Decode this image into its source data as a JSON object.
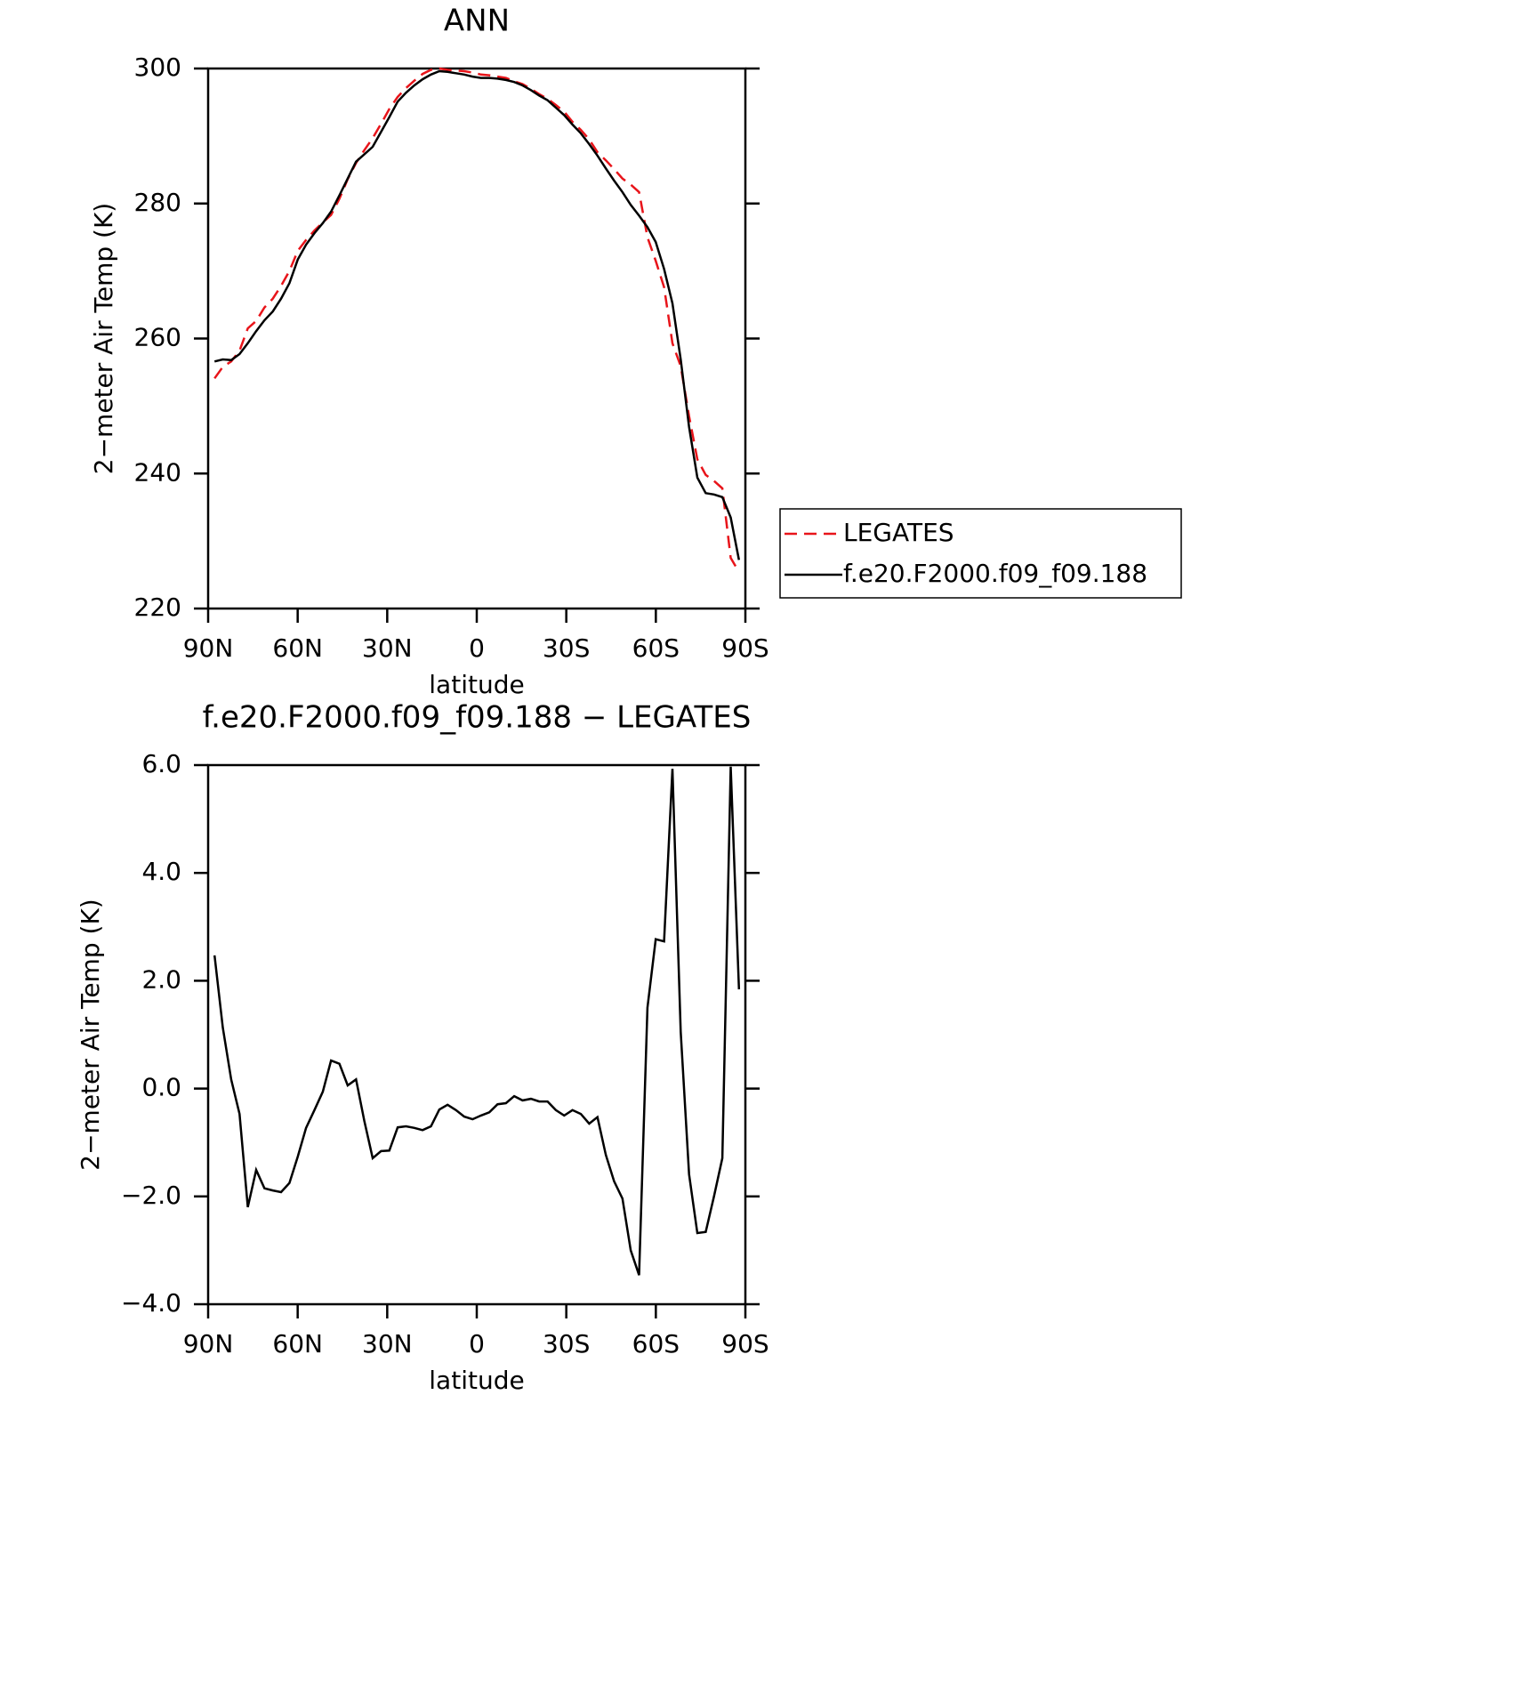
{
  "chart_data": [
    {
      "type": "line",
      "title": "ANN",
      "xlabel": "latitude",
      "ylabel": "2−meter Air Temp (K)",
      "x": [
        87.86,
        85.07,
        82.28,
        79.49,
        76.7,
        73.92,
        71.13,
        68.34,
        65.55,
        62.76,
        59.97,
        57.18,
        54.39,
        51.6,
        48.81,
        46.02,
        43.24,
        40.45,
        37.66,
        34.87,
        32.08,
        29.29,
        26.5,
        23.71,
        20.92,
        18.14,
        15.35,
        12.56,
        9.77,
        6.98,
        4.19,
        1.4,
        -1.4,
        -4.19,
        -6.98,
        -9.77,
        -12.56,
        -15.35,
        -18.14,
        -20.92,
        -23.71,
        -26.5,
        -29.29,
        -32.08,
        -34.87,
        -37.66,
        -40.45,
        -43.24,
        -46.02,
        -48.81,
        -51.6,
        -54.39,
        -57.18,
        -59.97,
        -62.76,
        -65.55,
        -68.34,
        -71.13,
        -73.92,
        -76.7,
        -79.49,
        -82.28,
        -85.07,
        -87.86
      ],
      "series": [
        {
          "name": "LEGATES",
          "color": "#e8141a",
          "line_style": "dashed",
          "values": [
            254.1,
            255.8,
            256.6,
            258.2,
            261.5,
            262.6,
            264.6,
            265.9,
            267.8,
            270.0,
            273.0,
            274.6,
            276.0,
            277.2,
            278.3,
            280.7,
            283.6,
            286.0,
            287.9,
            289.7,
            291.8,
            294.0,
            295.8,
            297.1,
            298.2,
            299.2,
            299.8,
            300.0,
            299.8,
            299.7,
            299.6,
            299.4,
            299.1,
            299.0,
            298.8,
            298.6,
            298.1,
            297.7,
            297.0,
            296.2,
            295.5,
            294.6,
            293.6,
            292.1,
            290.9,
            289.5,
            287.6,
            286.4,
            285.1,
            283.7,
            282.8,
            281.7,
            275.0,
            271.5,
            267.6,
            259.3,
            255.9,
            248.5,
            242.1,
            239.8,
            238.9,
            237.8,
            227.5,
            225.4
          ]
        },
        {
          "name": "f.e20.F2000.f09_f09.188",
          "color": "#000000",
          "line_style": "solid",
          "values": [
            256.6,
            256.9,
            256.8,
            257.7,
            259.3,
            261.1,
            262.7,
            264.0,
            265.9,
            268.2,
            271.7,
            273.9,
            275.6,
            277.1,
            278.8,
            281.2,
            283.7,
            286.2,
            287.3,
            288.4,
            290.6,
            292.8,
            295.1,
            296.4,
            297.5,
            298.4,
            299.1,
            299.6,
            299.5,
            299.3,
            299.1,
            298.8,
            298.6,
            298.6,
            298.5,
            298.3,
            298.0,
            297.5,
            296.8,
            296.0,
            295.3,
            294.2,
            293.1,
            291.7,
            290.4,
            288.8,
            287.1,
            285.2,
            283.4,
            281.7,
            279.8,
            278.2,
            276.5,
            274.3,
            270.3,
            265.2,
            256.9,
            246.9,
            239.4,
            237.1,
            236.9,
            236.5,
            233.5,
            227.2
          ]
        }
      ],
      "xlim": [
        90,
        -90
      ],
      "xticks": [
        {
          "value": 90,
          "label": "90N"
        },
        {
          "value": 60,
          "label": "60N"
        },
        {
          "value": 30,
          "label": "30N"
        },
        0,
        {
          "value": -30,
          "label": "30S"
        },
        {
          "value": -60,
          "label": "60S"
        },
        {
          "value": -90,
          "label": "90S"
        }
      ],
      "ylim": [
        220,
        300
      ],
      "yticks": [
        220,
        240,
        260,
        280,
        300
      ],
      "legend": "right"
    },
    {
      "type": "line",
      "title": "f.e20.F2000.f09_f09.188 − LEGATES",
      "xlabel": "latitude",
      "ylabel": "2−meter Air Temp (K)",
      "x": [
        87.86,
        85.07,
        82.28,
        79.49,
        76.7,
        73.92,
        71.13,
        68.34,
        65.55,
        62.76,
        59.97,
        57.18,
        54.39,
        51.6,
        48.81,
        46.02,
        43.24,
        40.45,
        37.66,
        34.87,
        32.08,
        29.29,
        26.5,
        23.71,
        20.92,
        18.14,
        15.35,
        12.56,
        9.77,
        6.98,
        4.19,
        1.4,
        -1.4,
        -4.19,
        -6.98,
        -9.77,
        -12.56,
        -15.35,
        -18.14,
        -20.92,
        -23.71,
        -26.5,
        -29.29,
        -32.08,
        -34.87,
        -37.66,
        -40.45,
        -43.24,
        -46.02,
        -48.81,
        -51.6,
        -54.39,
        -57.18,
        -59.97,
        -62.76,
        -65.55,
        -68.34,
        -71.13,
        -73.92,
        -76.7,
        -79.49,
        -82.28,
        -85.07,
        -87.86
      ],
      "color": "#000000",
      "values": [
        2.47,
        1.13,
        0.17,
        -0.47,
        -2.2,
        -1.51,
        -1.85,
        -1.89,
        -1.92,
        -1.75,
        -1.26,
        -0.73,
        -0.4,
        -0.06,
        0.52,
        0.46,
        0.06,
        0.17,
        -0.6,
        -1.29,
        -1.16,
        -1.15,
        -0.72,
        -0.7,
        -0.73,
        -0.77,
        -0.7,
        -0.39,
        -0.3,
        -0.4,
        -0.52,
        -0.57,
        -0.5,
        -0.44,
        -0.29,
        -0.27,
        -0.14,
        -0.22,
        -0.19,
        -0.24,
        -0.24,
        -0.4,
        -0.5,
        -0.4,
        -0.47,
        -0.65,
        -0.53,
        -1.23,
        -1.72,
        -2.04,
        -3.0,
        -3.46,
        1.5,
        2.77,
        2.73,
        5.93,
        1.05,
        -1.59,
        -2.68,
        -2.66,
        -2.0,
        -1.29,
        5.97,
        1.84
      ],
      "xlim": [
        90,
        -90
      ],
      "xticks": [
        {
          "value": 90,
          "label": "90N"
        },
        {
          "value": 60,
          "label": "60N"
        },
        {
          "value": 30,
          "label": "30N"
        },
        0,
        {
          "value": -30,
          "label": "30S"
        },
        {
          "value": -60,
          "label": "60S"
        },
        {
          "value": -90,
          "label": "90S"
        }
      ],
      "ylim": [
        -4,
        6
      ],
      "yticks": [
        {
          "value": -4,
          "label": "−4.0"
        },
        {
          "value": -2,
          "label": "−2.0"
        },
        {
          "value": 0,
          "label": "0.0"
        },
        {
          "value": 2,
          "label": "2.0"
        },
        {
          "value": 4,
          "label": "4.0"
        },
        {
          "value": 6,
          "label": "6.0"
        }
      ]
    }
  ]
}
